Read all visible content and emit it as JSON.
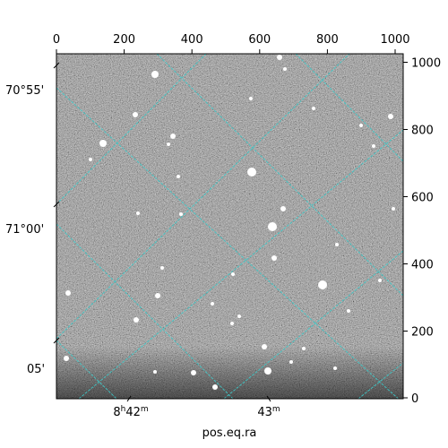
{
  "axes": {
    "top_ticks": [
      "0",
      "200",
      "400",
      "600",
      "800",
      "1000"
    ],
    "right_ticks": [
      "0",
      "200",
      "400",
      "600",
      "800",
      "1000"
    ],
    "left_labels": [
      "70°55'",
      "71°00'",
      "05'"
    ],
    "bottom_labels": [
      {
        "hour": "8",
        "hour_unit": "h",
        "minute": "42",
        "minute_unit": "m"
      },
      {
        "minute": "43",
        "minute_unit": "m"
      }
    ],
    "xlabel": "pos.eq.ra"
  },
  "image": {
    "pixel_range": [
      0,
      1024
    ],
    "colormap": "gray",
    "grid_color": "#3ec8c8"
  },
  "icons": {
    "left_tick": "short-diagonal-tick",
    "bottom_tick": "short-diagonal-tick"
  }
}
